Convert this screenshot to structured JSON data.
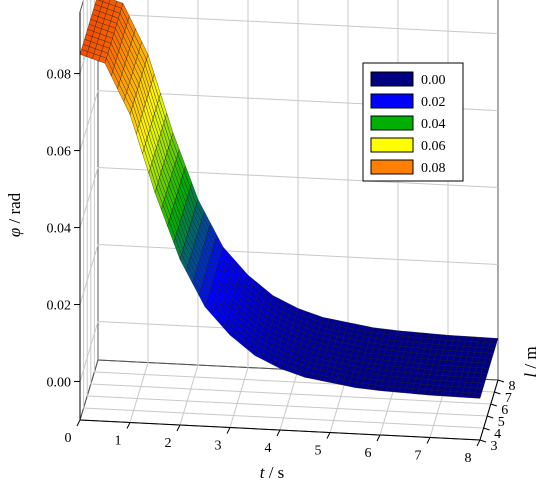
{
  "chart_data": {
    "type": "surface3d",
    "x_axis": {
      "label_var": "t",
      "label_unit": " / s",
      "range": [
        0,
        8
      ],
      "ticks": [
        "0",
        "1",
        "2",
        "3",
        "4",
        "5",
        "6",
        "7",
        "8"
      ]
    },
    "y_axis": {
      "label_var": "l",
      "label_unit": " / m",
      "range": [
        3,
        8
      ],
      "ticks": [
        "3",
        "4",
        "5",
        "6",
        "7",
        "8"
      ]
    },
    "z_axis": {
      "label_var": "φ",
      "label_unit": " / rad",
      "range": [
        -0.01,
        0.096
      ],
      "ticks": [
        "0.00",
        "0.02",
        "0.04",
        "0.06",
        "0.08"
      ]
    },
    "grid": true,
    "surface": {
      "description_of_values": "phi(t) roughly independent of l",
      "t": [
        0,
        0.5,
        1.0,
        1.5,
        2.0,
        2.5,
        3.0,
        3.5,
        4.0,
        4.5,
        5.0,
        5.5,
        6.0,
        7.0,
        8.0
      ],
      "phi": [
        0.085,
        0.083,
        0.07,
        0.05,
        0.033,
        0.021,
        0.014,
        0.009,
        0.006,
        0.004,
        0.003,
        0.002,
        0.0015,
        0.001,
        0.0008
      ]
    },
    "legend": {
      "placement": "top-right",
      "entries": [
        {
          "label": "0.00",
          "color": "#000080"
        },
        {
          "label": "0.02",
          "color": "#0000ff"
        },
        {
          "label": "0.04",
          "color": "#00b000"
        },
        {
          "label": "0.06",
          "color": "#ffff00"
        },
        {
          "label": "0.08",
          "color": "#ff8000"
        }
      ]
    }
  }
}
